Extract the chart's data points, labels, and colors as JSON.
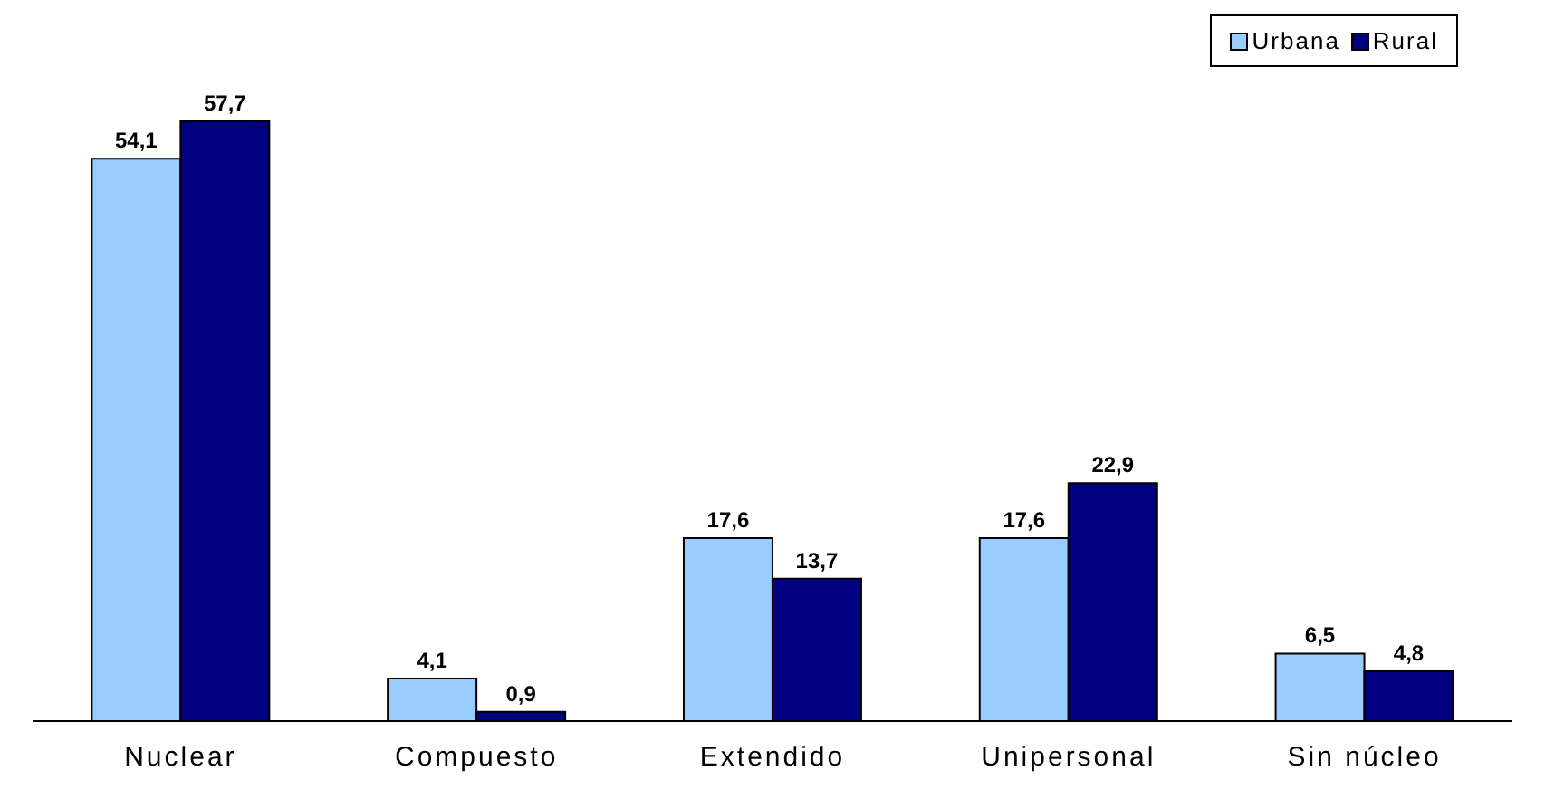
{
  "chart_data": {
    "type": "bar",
    "categories": [
      "Nuclear",
      "Compuesto",
      "Extendido",
      "Unipersonal",
      "Sin núcleo"
    ],
    "series": [
      {
        "name": "Urbana",
        "color": "#99ccff",
        "values": [
          54.1,
          4.1,
          17.6,
          17.6,
          6.5
        ],
        "value_labels": [
          "54,1",
          "4,1",
          "17,6",
          "17,6",
          "6,5"
        ]
      },
      {
        "name": "Rural",
        "color": "#000080",
        "values": [
          57.7,
          0.9,
          13.7,
          22.9,
          4.8
        ],
        "value_labels": [
          "57,7",
          "0,9",
          "13,7",
          "22,9",
          "4,8"
        ]
      }
    ],
    "legend": "top right",
    "grid": false,
    "tick_labels": "x"
  }
}
